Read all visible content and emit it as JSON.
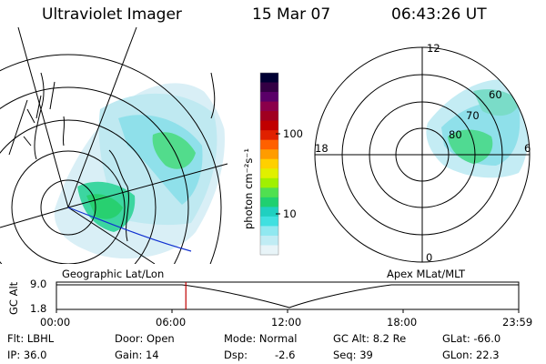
{
  "header": {
    "instrument": "Ultraviolet Imager",
    "date": "15 Mar 07",
    "time": "06:43:26 UT"
  },
  "colorbar": {
    "unit_label": "photon cm⁻²s⁻¹",
    "ticks": [
      "100",
      "10"
    ],
    "colors": [
      "#000033",
      "#330044",
      "#5a0068",
      "#8b004a",
      "#a00020",
      "#c00000",
      "#e02000",
      "#ff6000",
      "#ff9c00",
      "#ffd000",
      "#e0f000",
      "#a0f000",
      "#50e050",
      "#20d070",
      "#20d0c0",
      "#40e0e0",
      "#90e8f0",
      "#c0ecf4",
      "#e8f4f8"
    ]
  },
  "geo_map": {
    "label": "Geographic Lat/Lon"
  },
  "polar_map": {
    "label": "Apex MLat/MLT",
    "mlt_labels": {
      "top": "12",
      "left": "18",
      "right": "6",
      "bottom": "0"
    },
    "lat_labels": [
      "60",
      "70",
      "80"
    ]
  },
  "timeline": {
    "y_label": "GC Alt",
    "y_ticks": [
      "9.0",
      "1.8"
    ],
    "x_ticks": [
      "00:00",
      "06:00",
      "12:00",
      "18:00",
      "23:59"
    ],
    "current_fraction": 0.28
  },
  "status": {
    "flt": "Flt: LBHL",
    "ip": "IP: 36.0",
    "door": "Door: Open",
    "gain": "Gain: 14",
    "mode": "Mode: Normal",
    "dsp": "Dsp:",
    "dsp_value": "-2.6",
    "gc_alt": "GC Alt: 8.2 Re",
    "seq": "Seq: 39",
    "glat": "GLat: -66.0",
    "glon": "GLon: 22.3"
  }
}
